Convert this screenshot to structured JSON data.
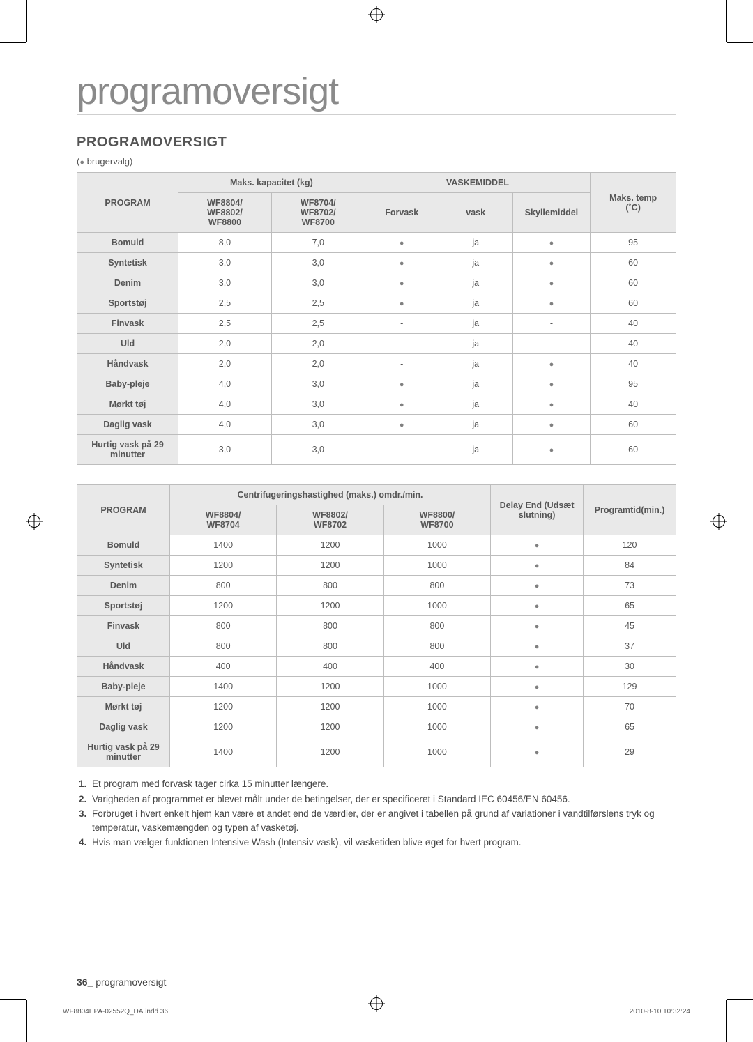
{
  "title": "programoversigt",
  "section_heading": "PROGRAMOVERSIGT",
  "legend_prefix": "(",
  "legend_dot": "●",
  "legend_text": " brugervalg)",
  "table1": {
    "head": {
      "program": "PROGRAM",
      "cap_group": "Maks. kapacitet (kg)",
      "cap_a": "WF8804/\nWF8802/\nWF8800",
      "cap_b": "WF8704/\nWF8702/\nWF8700",
      "det_group": "VASKEMIDDEL",
      "det_prewash": "Forvask",
      "det_wash": "vask",
      "det_soft": "Skyllemiddel",
      "temp": "Maks. temp\n(˚C)"
    },
    "rows": [
      {
        "p": "Bomuld",
        "a": "8,0",
        "b": "7,0",
        "f": "●",
        "w": "ja",
        "s": "●",
        "t": "95"
      },
      {
        "p": "Syntetisk",
        "a": "3,0",
        "b": "3,0",
        "f": "●",
        "w": "ja",
        "s": "●",
        "t": "60"
      },
      {
        "p": "Denim",
        "a": "3,0",
        "b": "3,0",
        "f": "●",
        "w": "ja",
        "s": "●",
        "t": "60"
      },
      {
        "p": "Sportstøj",
        "a": "2,5",
        "b": "2,5",
        "f": "●",
        "w": "ja",
        "s": "●",
        "t": "60"
      },
      {
        "p": "Finvask",
        "a": "2,5",
        "b": "2,5",
        "f": "-",
        "w": "ja",
        "s": "-",
        "t": "40"
      },
      {
        "p": "Uld",
        "a": "2,0",
        "b": "2,0",
        "f": "-",
        "w": "ja",
        "s": "-",
        "t": "40"
      },
      {
        "p": "Håndvask",
        "a": "2,0",
        "b": "2,0",
        "f": "-",
        "w": "ja",
        "s": "●",
        "t": "40"
      },
      {
        "p": "Baby-pleje",
        "a": "4,0",
        "b": "3,0",
        "f": "●",
        "w": "ja",
        "s": "●",
        "t": "95"
      },
      {
        "p": "Mørkt tøj",
        "a": "4,0",
        "b": "3,0",
        "f": "●",
        "w": "ja",
        "s": "●",
        "t": "40"
      },
      {
        "p": "Daglig vask",
        "a": "4,0",
        "b": "3,0",
        "f": "●",
        "w": "ja",
        "s": "●",
        "t": "60"
      },
      {
        "p": "Hurtig vask på 29 minutter",
        "a": "3,0",
        "b": "3,0",
        "f": "-",
        "w": "ja",
        "s": "●",
        "t": "60"
      }
    ]
  },
  "table2": {
    "head": {
      "program": "PROGRAM",
      "spin_group": "Centrifugeringshastighed (maks.) omdr./min.",
      "c1": "WF8804/\nWF8704",
      "c2": "WF8802/\nWF8702",
      "c3": "WF8800/\nWF8700",
      "delay": "Delay End (Udsæt slutning)",
      "time": "Programtid(min.)"
    },
    "rows": [
      {
        "p": "Bomuld",
        "c1": "1400",
        "c2": "1200",
        "c3": "1000",
        "d": "●",
        "t": "120"
      },
      {
        "p": "Syntetisk",
        "c1": "1200",
        "c2": "1200",
        "c3": "1000",
        "d": "●",
        "t": "84"
      },
      {
        "p": "Denim",
        "c1": "800",
        "c2": "800",
        "c3": "800",
        "d": "●",
        "t": "73"
      },
      {
        "p": "Sportstøj",
        "c1": "1200",
        "c2": "1200",
        "c3": "1000",
        "d": "●",
        "t": "65"
      },
      {
        "p": "Finvask",
        "c1": "800",
        "c2": "800",
        "c3": "800",
        "d": "●",
        "t": "45"
      },
      {
        "p": "Uld",
        "c1": "800",
        "c2": "800",
        "c3": "800",
        "d": "●",
        "t": "37"
      },
      {
        "p": "Håndvask",
        "c1": "400",
        "c2": "400",
        "c3": "400",
        "d": "●",
        "t": "30"
      },
      {
        "p": "Baby-pleje",
        "c1": "1400",
        "c2": "1200",
        "c3": "1000",
        "d": "●",
        "t": "129"
      },
      {
        "p": "Mørkt tøj",
        "c1": "1200",
        "c2": "1200",
        "c3": "1000",
        "d": "●",
        "t": "70"
      },
      {
        "p": "Daglig vask",
        "c1": "1200",
        "c2": "1200",
        "c3": "1000",
        "d": "●",
        "t": "65"
      },
      {
        "p": "Hurtig vask på 29 minutter",
        "c1": "1400",
        "c2": "1200",
        "c3": "1000",
        "d": "●",
        "t": "29"
      }
    ]
  },
  "notes": [
    "Et program med forvask tager cirka 15 minutter længere.",
    "Varigheden af programmet er blevet målt under de betingelser, der er specificeret i Standard IEC 60456/EN 60456.",
    "Forbruget i hvert enkelt hjem kan være et andet end de værdier, der er angivet i tabellen på grund af variationer i vandtilførslens tryk og temperatur, vaskemængden og typen af vasketøj.",
    "Hvis man vælger funktionen Intensive Wash (Intensiv vask), vil vasketiden blive øget for hvert program."
  ],
  "page_num": "36_",
  "page_label": "programoversigt",
  "print_file": "WF8804EPA-02552Q_DA.indd   36",
  "print_time": "2010-8-10   10:32:24"
}
